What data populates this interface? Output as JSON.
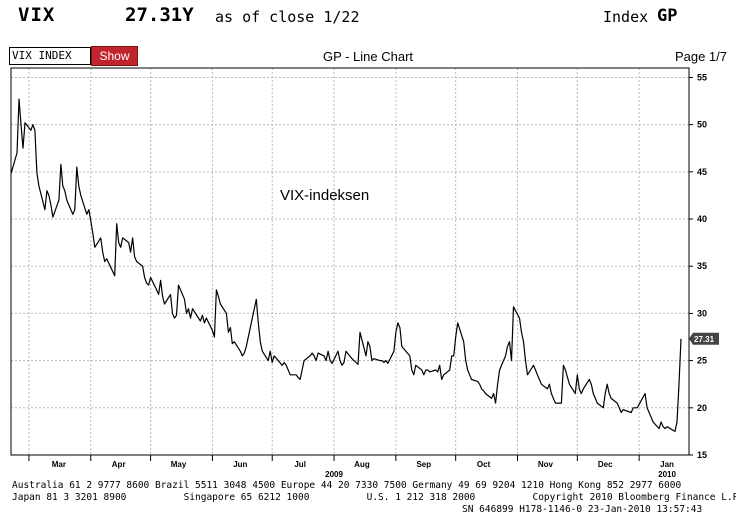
{
  "header": {
    "ticker": "VIX",
    "price": "27.31Y",
    "as_of": "as of close  1/22",
    "index_label": "Index",
    "index_code": "GP"
  },
  "toolbar": {
    "security": "VIX INDEX",
    "show_label": "Show",
    "chart_title": "GP - Line Chart",
    "page": "Page 1/7"
  },
  "footer": {
    "line1": "Australia 61 2 9777 8600 Brazil 5511 3048 4500 Europe 44 20 7330 7500 Germany 49 69 9204 1210 Hong Kong 852 2977 6000",
    "line2": "Japan 81 3 3201 8900          Singapore 65 6212 1000          U.S. 1 212 318 2000          Copyright 2010 Bloomberg Finance L.P.",
    "line3": "SN 646899 H178-1146-0 23-Jan-2010 13:57:43"
  },
  "colors": {
    "line": "#000000",
    "grid": "#b8b8b8",
    "last_price_tag": "#444444",
    "show_button": "#c0242c"
  },
  "chart_data": {
    "type": "line",
    "annotation": "VIX-indeksen",
    "last_value_label": "27.31",
    "ylim": [
      15,
      56
    ],
    "y_ticks": [
      15,
      20,
      25,
      30,
      35,
      40,
      45,
      50,
      55
    ],
    "x_start": "2009-02-20",
    "x_end": "2010-01-26",
    "month_labels": [
      {
        "label": "Mar",
        "date": "2009-03-16"
      },
      {
        "label": "Apr",
        "date": "2009-04-15"
      },
      {
        "label": "May",
        "date": "2009-05-15"
      },
      {
        "label": "Jun",
        "date": "2009-06-15"
      },
      {
        "label": "Jul",
        "date": "2009-07-15"
      },
      {
        "label": "Aug",
        "date": "2009-08-15"
      },
      {
        "label": "Sep",
        "date": "2009-09-15"
      },
      {
        "label": "Oct",
        "date": "2009-10-15"
      },
      {
        "label": "Nov",
        "date": "2009-11-15"
      },
      {
        "label": "Dec",
        "date": "2009-12-15"
      },
      {
        "label": "Jan",
        "date": "2010-01-15"
      }
    ],
    "month_boundaries": [
      "2009-03-01",
      "2009-04-01",
      "2009-05-01",
      "2009-06-01",
      "2009-07-01",
      "2009-08-01",
      "2009-09-01",
      "2009-10-01",
      "2009-11-01",
      "2009-12-01",
      "2010-01-01"
    ],
    "year_labels": [
      {
        "label": "2009",
        "date": "2009-08-01"
      },
      {
        "label": "2010",
        "date": "2010-01-15"
      }
    ],
    "series": [
      {
        "points": [
          [
            "2009-02-20",
            44.8
          ],
          [
            "2009-02-23",
            47.0
          ],
          [
            "2009-02-24",
            52.7
          ],
          [
            "2009-02-25",
            50.0
          ],
          [
            "2009-02-26",
            47.5
          ],
          [
            "2009-02-27",
            50.2
          ],
          [
            "2009-03-02",
            49.4
          ],
          [
            "2009-03-03",
            50.0
          ],
          [
            "2009-03-04",
            49.4
          ],
          [
            "2009-03-05",
            44.9
          ],
          [
            "2009-03-06",
            43.5
          ],
          [
            "2009-03-09",
            41.0
          ],
          [
            "2009-03-10",
            43.0
          ],
          [
            "2009-03-11",
            42.5
          ],
          [
            "2009-03-12",
            41.5
          ],
          [
            "2009-03-13",
            40.2
          ],
          [
            "2009-03-16",
            42.0
          ],
          [
            "2009-03-17",
            45.8
          ],
          [
            "2009-03-18",
            43.5
          ],
          [
            "2009-03-19",
            43.0
          ],
          [
            "2009-03-20",
            42.0
          ],
          [
            "2009-03-23",
            40.5
          ],
          [
            "2009-03-24",
            41.0
          ],
          [
            "2009-03-25",
            45.5
          ],
          [
            "2009-03-26",
            43.5
          ],
          [
            "2009-03-27",
            42.5
          ],
          [
            "2009-03-30",
            40.5
          ],
          [
            "2009-03-31",
            41.0
          ],
          [
            "2009-04-01",
            39.8
          ],
          [
            "2009-04-02",
            38.5
          ],
          [
            "2009-04-03",
            37.0
          ],
          [
            "2009-04-06",
            38.0
          ],
          [
            "2009-04-07",
            36.5
          ],
          [
            "2009-04-08",
            35.5
          ],
          [
            "2009-04-09",
            35.8
          ],
          [
            "2009-04-13",
            34.0
          ],
          [
            "2009-04-14",
            39.5
          ],
          [
            "2009-04-15",
            37.5
          ],
          [
            "2009-04-16",
            37.0
          ],
          [
            "2009-04-17",
            38.0
          ],
          [
            "2009-04-20",
            37.5
          ],
          [
            "2009-04-21",
            36.5
          ],
          [
            "2009-04-22",
            38.0
          ],
          [
            "2009-04-23",
            36.0
          ],
          [
            "2009-04-24",
            35.5
          ],
          [
            "2009-04-27",
            35.0
          ],
          [
            "2009-04-28",
            33.8
          ],
          [
            "2009-04-29",
            33.2
          ],
          [
            "2009-04-30",
            33.0
          ],
          [
            "2009-05-01",
            33.8
          ],
          [
            "2009-05-04",
            32.5
          ],
          [
            "2009-05-05",
            32.0
          ],
          [
            "2009-05-06",
            33.5
          ],
          [
            "2009-05-07",
            31.8
          ],
          [
            "2009-05-08",
            31.0
          ],
          [
            "2009-05-11",
            32.0
          ],
          [
            "2009-05-12",
            30.0
          ],
          [
            "2009-05-13",
            29.5
          ],
          [
            "2009-05-14",
            29.8
          ],
          [
            "2009-05-15",
            33.0
          ],
          [
            "2009-05-18",
            31.5
          ],
          [
            "2009-05-19",
            30.0
          ],
          [
            "2009-05-20",
            30.5
          ],
          [
            "2009-05-21",
            29.5
          ],
          [
            "2009-05-22",
            30.5
          ],
          [
            "2009-05-26",
            29.2
          ],
          [
            "2009-05-27",
            29.8
          ],
          [
            "2009-05-28",
            29.0
          ],
          [
            "2009-05-29",
            29.5
          ],
          [
            "2009-06-01",
            28.2
          ],
          [
            "2009-06-02",
            27.5
          ],
          [
            "2009-06-03",
            32.5
          ],
          [
            "2009-06-04",
            31.8
          ],
          [
            "2009-06-05",
            31.0
          ],
          [
            "2009-06-08",
            30.0
          ],
          [
            "2009-06-09",
            28.0
          ],
          [
            "2009-06-10",
            28.5
          ],
          [
            "2009-06-11",
            26.8
          ],
          [
            "2009-06-12",
            27.0
          ],
          [
            "2009-06-15",
            26.0
          ],
          [
            "2009-06-16",
            25.5
          ],
          [
            "2009-06-17",
            25.8
          ],
          [
            "2009-06-18",
            26.5
          ],
          [
            "2009-06-19",
            27.5
          ],
          [
            "2009-06-22",
            30.5
          ],
          [
            "2009-06-23",
            31.5
          ],
          [
            "2009-06-24",
            29.0
          ],
          [
            "2009-06-25",
            27.0
          ],
          [
            "2009-06-26",
            26.0
          ],
          [
            "2009-06-29",
            25.0
          ],
          [
            "2009-06-30",
            26.0
          ],
          [
            "2009-07-01",
            24.8
          ],
          [
            "2009-07-02",
            25.5
          ],
          [
            "2009-07-06",
            24.5
          ],
          [
            "2009-07-07",
            24.8
          ],
          [
            "2009-07-08",
            24.5
          ],
          [
            "2009-07-09",
            24.0
          ],
          [
            "2009-07-10",
            23.5
          ],
          [
            "2009-07-13",
            23.5
          ],
          [
            "2009-07-14",
            23.2
          ],
          [
            "2009-07-15",
            23.0
          ],
          [
            "2009-07-16",
            24.0
          ],
          [
            "2009-07-17",
            25.0
          ],
          [
            "2009-07-20",
            25.5
          ],
          [
            "2009-07-21",
            25.8
          ],
          [
            "2009-07-22",
            25.5
          ],
          [
            "2009-07-23",
            25.0
          ],
          [
            "2009-07-24",
            25.8
          ],
          [
            "2009-07-27",
            25.5
          ],
          [
            "2009-07-28",
            25.0
          ],
          [
            "2009-07-29",
            26.0
          ],
          [
            "2009-07-30",
            25.0
          ],
          [
            "2009-07-31",
            24.7
          ],
          [
            "2009-08-03",
            26.0
          ],
          [
            "2009-08-04",
            25.0
          ],
          [
            "2009-08-05",
            24.5
          ],
          [
            "2009-08-06",
            24.8
          ],
          [
            "2009-08-07",
            26.0
          ],
          [
            "2009-08-10",
            25.2
          ],
          [
            "2009-08-11",
            25.0
          ],
          [
            "2009-08-12",
            24.8
          ],
          [
            "2009-08-13",
            24.6
          ],
          [
            "2009-08-14",
            28.0
          ],
          [
            "2009-08-17",
            25.5
          ],
          [
            "2009-08-18",
            27.0
          ],
          [
            "2009-08-19",
            26.5
          ],
          [
            "2009-08-20",
            25.0
          ],
          [
            "2009-08-21",
            25.2
          ],
          [
            "2009-08-24",
            25.0
          ],
          [
            "2009-08-25",
            25.0
          ],
          [
            "2009-08-26",
            24.8
          ],
          [
            "2009-08-27",
            25.0
          ],
          [
            "2009-08-28",
            24.7
          ],
          [
            "2009-08-31",
            26.0
          ],
          [
            "2009-09-01",
            28.0
          ],
          [
            "2009-09-02",
            29.0
          ],
          [
            "2009-09-03",
            28.5
          ],
          [
            "2009-09-04",
            26.5
          ],
          [
            "2009-09-08",
            25.5
          ],
          [
            "2009-09-09",
            24.0
          ],
          [
            "2009-09-10",
            23.5
          ],
          [
            "2009-09-11",
            24.5
          ],
          [
            "2009-09-14",
            24.0
          ],
          [
            "2009-09-15",
            23.5
          ],
          [
            "2009-09-16",
            24.0
          ],
          [
            "2009-09-17",
            24.0
          ],
          [
            "2009-09-18",
            23.8
          ],
          [
            "2009-09-21",
            24.0
          ],
          [
            "2009-09-22",
            23.8
          ],
          [
            "2009-09-23",
            24.5
          ],
          [
            "2009-09-24",
            23.0
          ],
          [
            "2009-09-25",
            23.5
          ],
          [
            "2009-09-28",
            24.0
          ],
          [
            "2009-09-29",
            25.5
          ],
          [
            "2009-09-30",
            25.5
          ],
          [
            "2009-10-01",
            27.5
          ],
          [
            "2009-10-02",
            29.0
          ],
          [
            "2009-10-05",
            27.0
          ],
          [
            "2009-10-06",
            25.0
          ],
          [
            "2009-10-07",
            24.0
          ],
          [
            "2009-10-08",
            23.5
          ],
          [
            "2009-10-09",
            23.0
          ],
          [
            "2009-10-12",
            22.8
          ],
          [
            "2009-10-13",
            22.5
          ],
          [
            "2009-10-14",
            22.0
          ],
          [
            "2009-10-15",
            21.8
          ],
          [
            "2009-10-16",
            21.5
          ],
          [
            "2009-10-19",
            21.0
          ],
          [
            "2009-10-20",
            21.5
          ],
          [
            "2009-10-21",
            20.5
          ],
          [
            "2009-10-22",
            22.5
          ],
          [
            "2009-10-23",
            24.0
          ],
          [
            "2009-10-26",
            25.5
          ],
          [
            "2009-10-27",
            26.5
          ],
          [
            "2009-10-28",
            27.0
          ],
          [
            "2009-10-29",
            25.0
          ],
          [
            "2009-10-30",
            30.7
          ],
          [
            "2009-11-02",
            29.5
          ],
          [
            "2009-11-03",
            28.0
          ],
          [
            "2009-11-04",
            27.0
          ],
          [
            "2009-11-05",
            25.0
          ],
          [
            "2009-11-06",
            23.5
          ],
          [
            "2009-11-09",
            24.5
          ],
          [
            "2009-11-10",
            24.0
          ],
          [
            "2009-11-11",
            23.5
          ],
          [
            "2009-11-12",
            23.0
          ],
          [
            "2009-11-13",
            22.5
          ],
          [
            "2009-11-16",
            22.0
          ],
          [
            "2009-11-17",
            22.5
          ],
          [
            "2009-11-18",
            21.5
          ],
          [
            "2009-11-19",
            21.0
          ],
          [
            "2009-11-20",
            20.5
          ],
          [
            "2009-11-23",
            20.5
          ],
          [
            "2009-11-24",
            24.5
          ],
          [
            "2009-11-25",
            24.0
          ],
          [
            "2009-11-27",
            22.5
          ],
          [
            "2009-11-30",
            21.5
          ],
          [
            "2009-12-01",
            23.5
          ],
          [
            "2009-12-02",
            22.0
          ],
          [
            "2009-12-03",
            21.5
          ],
          [
            "2009-12-04",
            22.0
          ],
          [
            "2009-12-07",
            23.0
          ],
          [
            "2009-12-08",
            22.5
          ],
          [
            "2009-12-09",
            21.5
          ],
          [
            "2009-12-10",
            21.0
          ],
          [
            "2009-12-11",
            20.5
          ],
          [
            "2009-12-14",
            20.0
          ],
          [
            "2009-12-15",
            21.5
          ],
          [
            "2009-12-16",
            22.5
          ],
          [
            "2009-12-17",
            21.5
          ],
          [
            "2009-12-18",
            21.0
          ],
          [
            "2009-12-21",
            20.5
          ],
          [
            "2009-12-22",
            20.0
          ],
          [
            "2009-12-23",
            19.5
          ],
          [
            "2009-12-24",
            19.8
          ],
          [
            "2009-12-28",
            19.5
          ],
          [
            "2009-12-29",
            20.0
          ],
          [
            "2009-12-30",
            20.0
          ],
          [
            "2009-12-31",
            20.0
          ],
          [
            "2010-01-04",
            21.5
          ],
          [
            "2010-01-05",
            20.0
          ],
          [
            "2010-01-06",
            19.5
          ],
          [
            "2010-01-07",
            19.0
          ],
          [
            "2010-01-08",
            18.5
          ],
          [
            "2010-01-11",
            17.8
          ],
          [
            "2010-01-12",
            18.5
          ],
          [
            "2010-01-13",
            18.0
          ],
          [
            "2010-01-14",
            17.8
          ],
          [
            "2010-01-15",
            18.0
          ],
          [
            "2010-01-19",
            17.5
          ],
          [
            "2010-01-20",
            18.5
          ],
          [
            "2010-01-21",
            22.5
          ],
          [
            "2010-01-22",
            27.31
          ]
        ]
      }
    ]
  }
}
